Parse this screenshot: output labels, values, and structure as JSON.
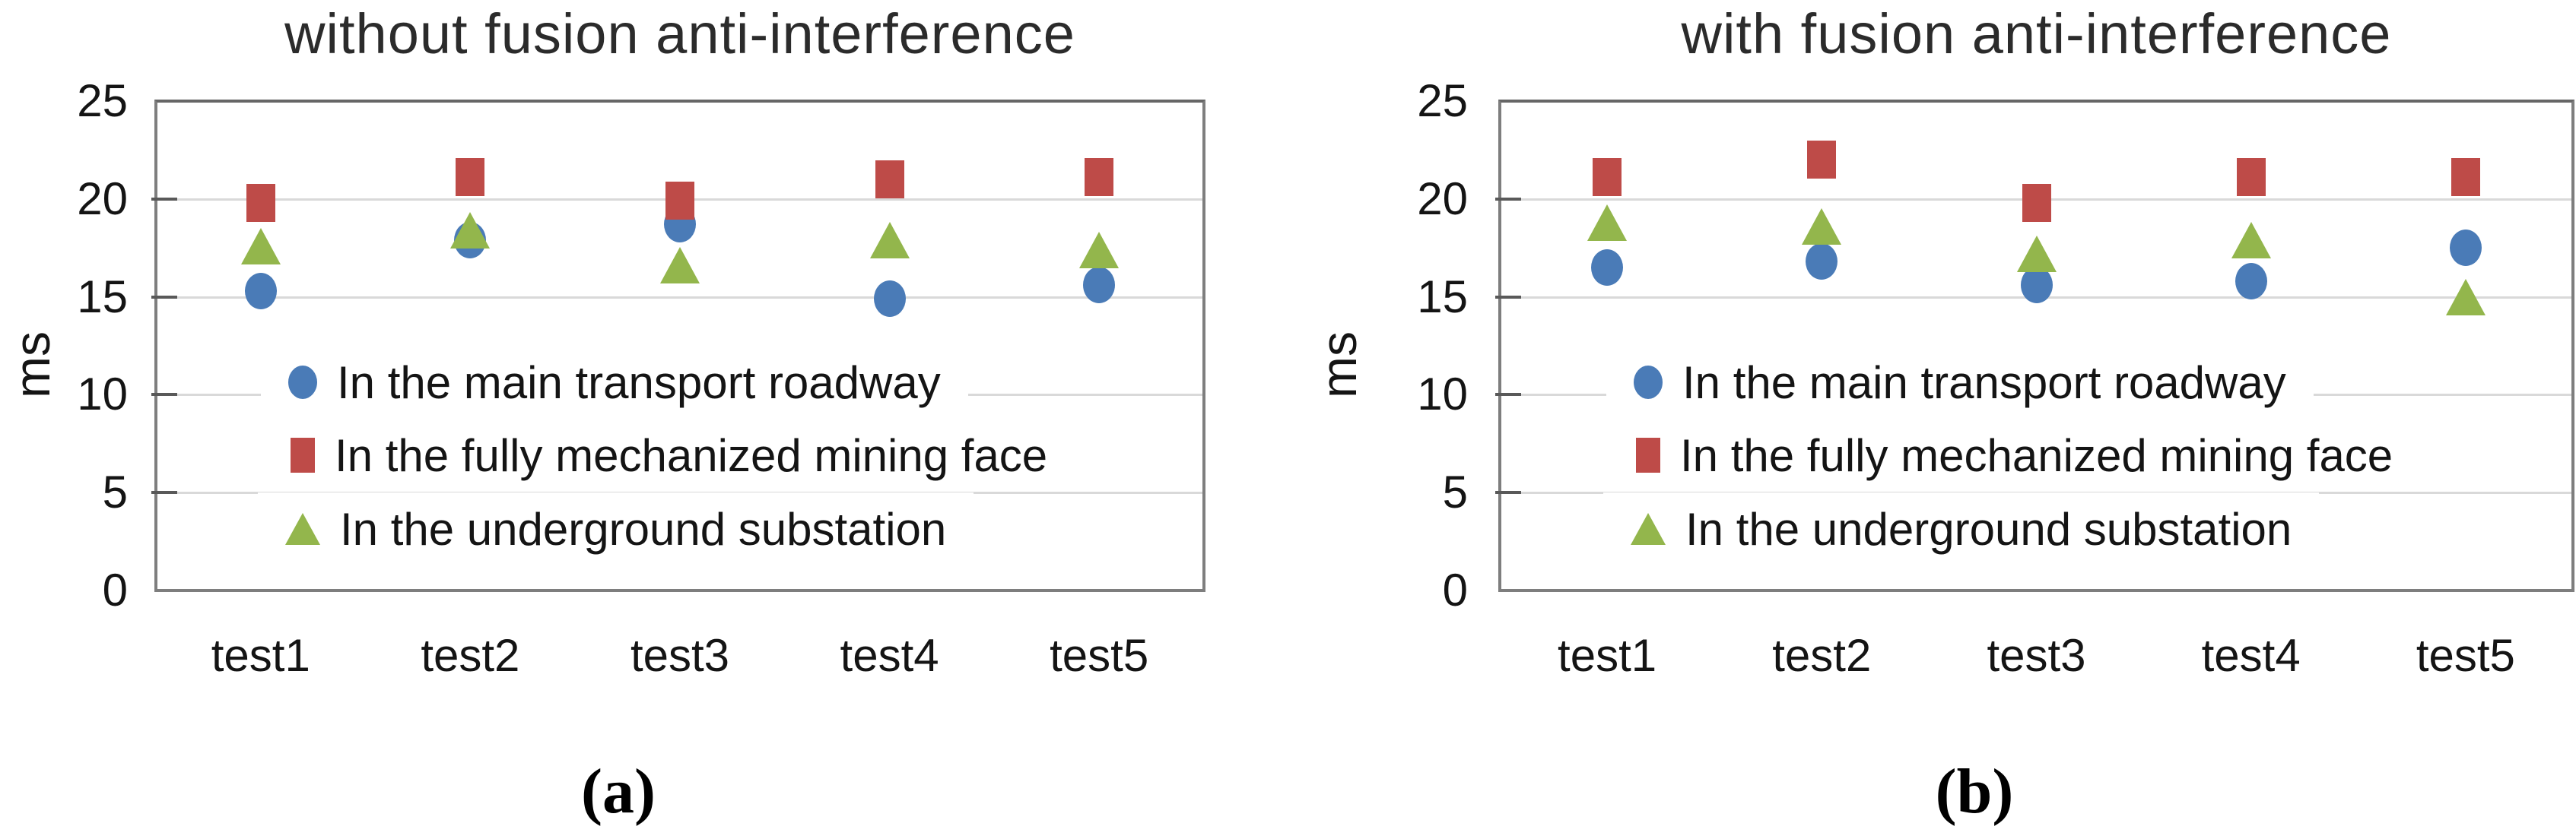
{
  "chart_data": [
    {
      "id": "a",
      "type": "scatter",
      "title": "without fusion anti-interference",
      "caption": "(a)",
      "ylabel": "ms",
      "xlabel": "",
      "ylim": [
        0,
        25
      ],
      "yticks": [
        25,
        20,
        15,
        10,
        5,
        0
      ],
      "gridline_values": [
        20,
        15,
        10,
        5
      ],
      "grid": true,
      "legend_position": "inside-left",
      "categories": [
        "test1",
        "test2",
        "test3",
        "test4",
        "test5"
      ],
      "series": [
        {
          "name": "In the main transport roadway",
          "marker": "circle",
          "color": "#4A7BB7",
          "values": [
            15.3,
            17.9,
            18.7,
            14.9,
            15.6
          ]
        },
        {
          "name": "In the fully mechanized mining face",
          "marker": "square",
          "color": "#BE4B48",
          "values": [
            19.8,
            21.1,
            19.9,
            21.0,
            21.1
          ]
        },
        {
          "name": "In the underground substation",
          "marker": "triangle",
          "color": "#93B64C",
          "values": [
            17.6,
            18.4,
            16.6,
            17.9,
            17.4
          ]
        }
      ]
    },
    {
      "id": "b",
      "type": "scatter",
      "title": "with fusion anti-interference",
      "caption": "(b)",
      "ylabel": "ms",
      "xlabel": "",
      "ylim": [
        0,
        25
      ],
      "yticks": [
        25,
        20,
        15,
        10,
        5,
        0
      ],
      "gridline_values": [
        20,
        15,
        10,
        5
      ],
      "grid": true,
      "legend_position": "inside-left",
      "categories": [
        "test1",
        "test2",
        "test3",
        "test4",
        "test5"
      ],
      "series": [
        {
          "name": "In the main transport roadway",
          "marker": "circle",
          "color": "#4A7BB7",
          "values": [
            16.5,
            16.8,
            15.6,
            15.8,
            17.5
          ]
        },
        {
          "name": "In the fully mechanized mining face",
          "marker": "square",
          "color": "#BE4B48",
          "values": [
            21.1,
            22.0,
            19.8,
            21.1,
            21.1
          ]
        },
        {
          "name": "In the underground substation",
          "marker": "triangle",
          "color": "#93B64C",
          "values": [
            18.8,
            18.6,
            17.2,
            17.9,
            15.0
          ]
        }
      ]
    }
  ]
}
